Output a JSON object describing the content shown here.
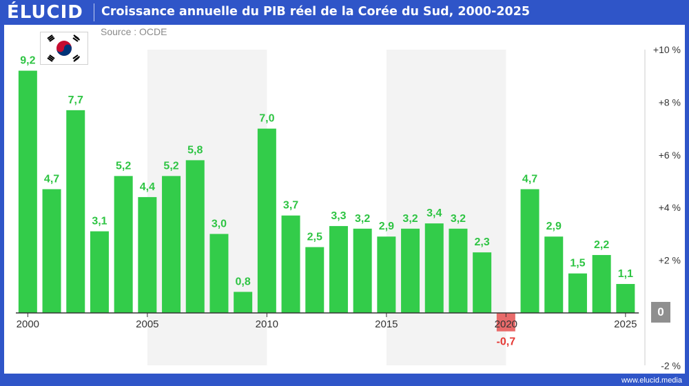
{
  "header": {
    "logo": "ÉLUCID",
    "title": "Croissance annuelle du PIB réel de la Corée du Sud, 2000-2025"
  },
  "source": "Source : OCDE",
  "footer_url": "www.elucid.media",
  "zero_badge": "0",
  "colors": {
    "background": "#2f55c8",
    "positive": "#33cc4a",
    "positive_label": "#2ec443",
    "negative": "#e86a6a",
    "negative_label": "#e53935",
    "band": "#f3f3f3",
    "axis": "#333333"
  },
  "flag_icon": "south-korea-flag-icon",
  "chart_data": {
    "type": "bar",
    "title": "Croissance annuelle du PIB réel de la Corée du Sud, 2000-2025",
    "categories": [
      2000,
      2001,
      2002,
      2003,
      2004,
      2005,
      2006,
      2007,
      2008,
      2009,
      2010,
      2011,
      2012,
      2013,
      2014,
      2015,
      2016,
      2017,
      2018,
      2019,
      2020,
      2021,
      2022,
      2023,
      2024,
      2025
    ],
    "values": [
      9.2,
      4.7,
      7.7,
      3.1,
      5.2,
      4.4,
      5.2,
      5.8,
      3.0,
      0.8,
      7.0,
      3.7,
      2.5,
      3.3,
      3.2,
      2.9,
      3.2,
      3.4,
      3.2,
      2.3,
      -0.7,
      4.7,
      2.9,
      1.5,
      2.2,
      1.1
    ],
    "value_labels": [
      "9,2",
      "4,7",
      "7,7",
      "3,1",
      "5,2",
      "4,4",
      "5,2",
      "5,8",
      "3,0",
      "0,8",
      "7,0",
      "3,7",
      "2,5",
      "3,3",
      "3,2",
      "2,9",
      "3,2",
      "3,4",
      "3,2",
      "2,3",
      "-0,7",
      "4,7",
      "2,9",
      "1,5",
      "2,2",
      "1,1"
    ],
    "x_tick_labels": [
      "2000",
      "2005",
      "2010",
      "2015",
      "2020",
      "2025"
    ],
    "x_tick_years": [
      2000,
      2005,
      2010,
      2015,
      2020,
      2025
    ],
    "y_tick_labels": [
      "+10 %",
      "+8 %",
      "+6 %",
      "+4 %",
      "+2 %",
      "-2 %"
    ],
    "y_tick_values": [
      10,
      8,
      6,
      4,
      2,
      -2
    ],
    "ylim": [
      -2,
      10
    ],
    "grid": false,
    "shaded_bands": [
      [
        2005,
        2009
      ],
      [
        2015,
        2019
      ]
    ]
  }
}
